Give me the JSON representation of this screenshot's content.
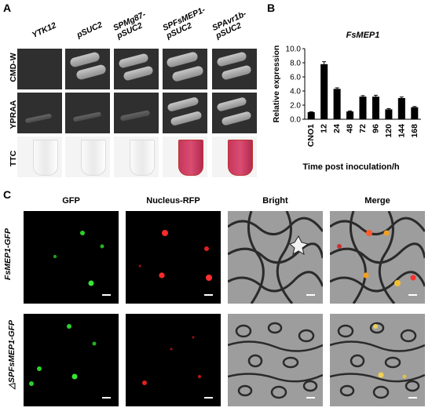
{
  "panels": {
    "a": "A",
    "b": "B",
    "c": "C"
  },
  "panelA": {
    "columns": [
      "YTK12",
      "pSUC2",
      "SPMg87-\npSUC2",
      "SPFsMEP1-\npSUC2",
      "SPAvr1b-\npSUC2"
    ],
    "rows": [
      "CMD-W",
      "YPRAA",
      "TTC"
    ]
  },
  "chart_data": {
    "type": "bar",
    "title": "FsMEP1",
    "ylabel": "Relative expression",
    "xlabel": "Time post inoculation/h",
    "categories": [
      "CNO1",
      "12",
      "24",
      "48",
      "72",
      "96",
      "120",
      "144",
      "168"
    ],
    "values": [
      1.0,
      7.8,
      4.3,
      1.1,
      3.2,
      3.2,
      1.4,
      3.0,
      1.7
    ],
    "errors": [
      0.05,
      0.35,
      0.15,
      0.08,
      0.15,
      0.2,
      0.1,
      0.15,
      0.1
    ],
    "ylim": [
      0,
      10
    ],
    "yticks": [
      "0.0",
      "2.0",
      "4.0",
      "6.0",
      "8.0",
      "10.0"
    ],
    "color": "#000000"
  },
  "panelC": {
    "columns": [
      "GFP",
      "Nucleus-RFP",
      "Bright",
      "Merge"
    ],
    "rows": [
      "FsMEP1-GFP",
      "△SPFsMEP1-GFP"
    ]
  }
}
